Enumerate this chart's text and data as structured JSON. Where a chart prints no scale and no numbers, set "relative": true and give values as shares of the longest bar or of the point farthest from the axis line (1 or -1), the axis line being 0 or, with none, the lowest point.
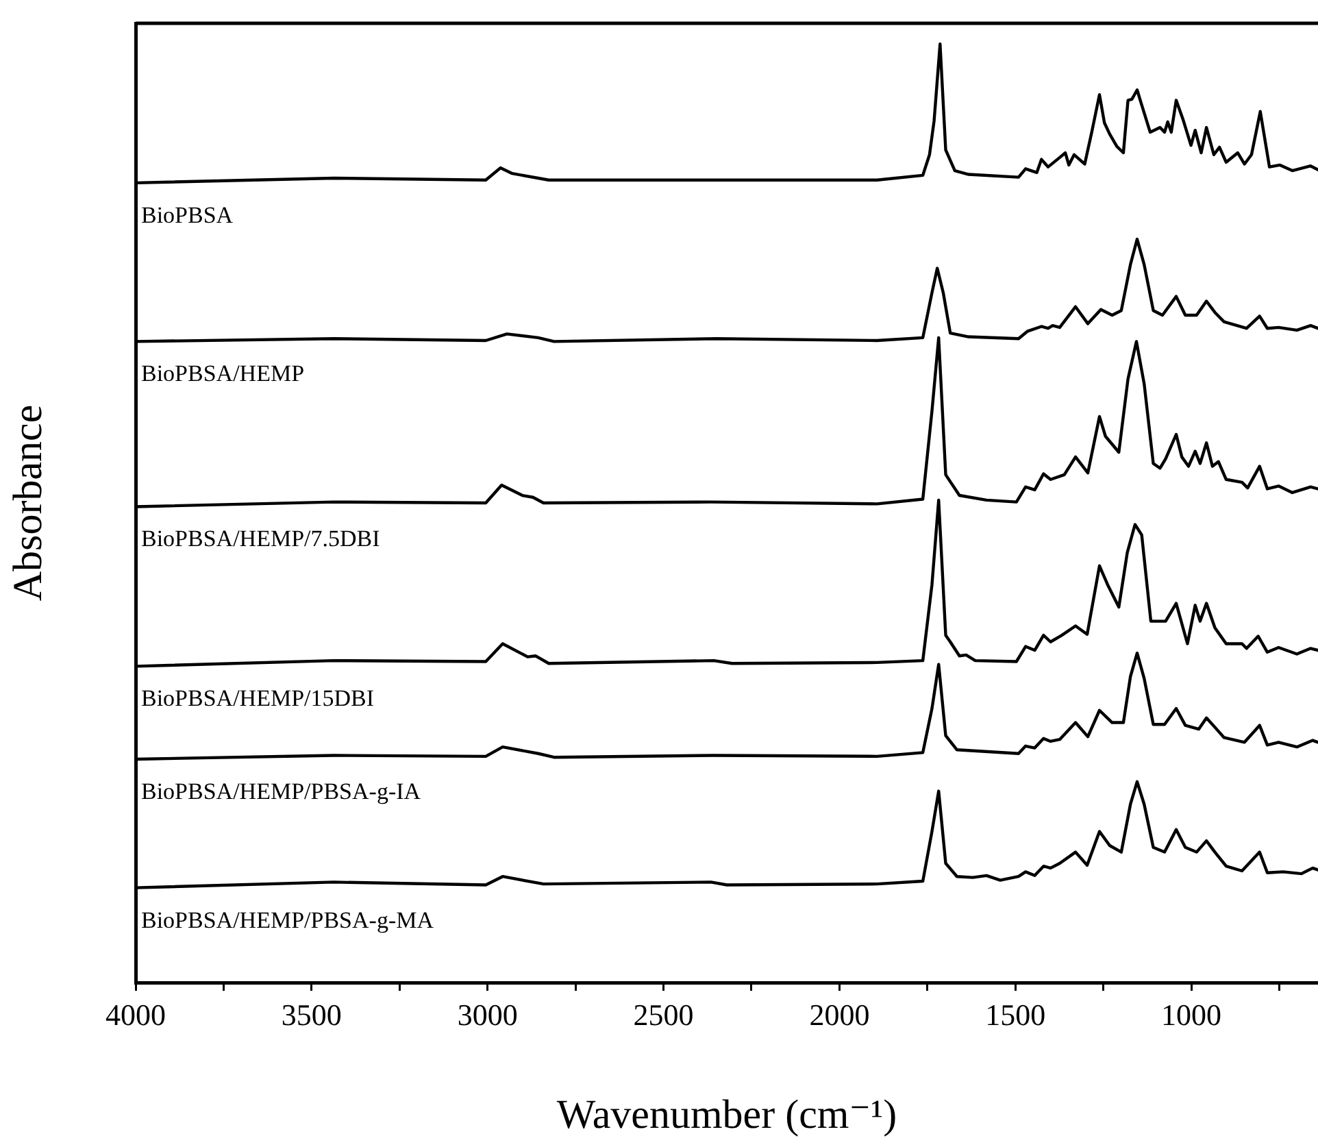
{
  "chart_data": {
    "type": "line",
    "relative": true,
    "xlabel": "Wavenumber (cm⁻¹)",
    "ylabel": "Absorbance",
    "xlim": [
      4000,
      640
    ],
    "xticks": [
      4000,
      {
        "value": 3750,
        "label": null
      },
      3500,
      {
        "value": 3250,
        "label": null
      },
      3000,
      {
        "value": 2750,
        "label": null
      },
      2500,
      {
        "value": 2250,
        "label": null
      },
      2000,
      {
        "value": 1750,
        "label": null
      },
      1500,
      {
        "value": 1250,
        "label": null
      },
      1000,
      {
        "value": 750,
        "label": null
      }
    ],
    "grid": false,
    "legend": false,
    "marker": "none",
    "line_style": "solid",
    "series": [
      {
        "name": "BioPBSA",
        "color": "#000000",
        "x": [
          4000,
          3437,
          3005,
          2963,
          2930,
          2856,
          2826,
          1893,
          1763,
          1744,
          1731,
          1714,
          1698,
          1672,
          1633,
          1491,
          1471,
          1439,
          1426,
          1407,
          1374,
          1358,
          1348,
          1333,
          1303,
          1283,
          1261,
          1247,
          1232,
          1212,
          1193,
          1180,
          1169,
          1154,
          1141,
          1117,
          1089,
          1076,
          1067,
          1057,
          1043,
          1024,
          1001,
          989,
          972,
          957,
          936,
          920,
          901,
          868,
          849,
          829,
          804,
          778,
          749,
          713,
          661,
          640
        ],
        "values": [
          0.852,
          0.857,
          0.855,
          0.868,
          0.862,
          0.857,
          0.855,
          0.855,
          0.86,
          0.882,
          0.918,
          1.0,
          0.887,
          0.865,
          0.861,
          0.858,
          0.867,
          0.863,
          0.877,
          0.869,
          0.879,
          0.884,
          0.871,
          0.882,
          0.872,
          0.906,
          0.946,
          0.916,
          0.904,
          0.891,
          0.884,
          0.94,
          0.941,
          0.951,
          0.935,
          0.906,
          0.911,
          0.906,
          0.917,
          0.906,
          0.94,
          0.92,
          0.892,
          0.908,
          0.884,
          0.911,
          0.882,
          0.89,
          0.874,
          0.884,
          0.872,
          0.882,
          0.928,
          0.869,
          0.871,
          0.865,
          0.87,
          0.866
        ]
      },
      {
        "name": "BioPBSA/HEMP",
        "color": "#000000",
        "x": [
          4000,
          3437,
          3005,
          2945,
          2856,
          2811,
          2350,
          1893,
          1763,
          1737,
          1722,
          1705,
          1685,
          1633,
          1491,
          1465,
          1426,
          1407,
          1394,
          1374,
          1329,
          1294,
          1257,
          1225,
          1199,
          1173,
          1154,
          1134,
          1108,
          1082,
          1043,
          1017,
          985,
          957,
          933,
          907,
          843,
          806,
          784,
          752,
          700,
          661,
          640
        ],
        "values": [
          0.683,
          0.686,
          0.684,
          0.691,
          0.687,
          0.683,
          0.686,
          0.684,
          0.687,
          0.735,
          0.761,
          0.735,
          0.692,
          0.688,
          0.686,
          0.694,
          0.699,
          0.697,
          0.7,
          0.698,
          0.72,
          0.702,
          0.717,
          0.711,
          0.716,
          0.765,
          0.792,
          0.765,
          0.716,
          0.711,
          0.731,
          0.711,
          0.711,
          0.726,
          0.714,
          0.704,
          0.697,
          0.71,
          0.697,
          0.698,
          0.695,
          0.7,
          0.697
        ]
      },
      {
        "name": "BioPBSA/HEMP/7.5DBI",
        "color": "#000000",
        "x": [
          4000,
          3437,
          3005,
          2960,
          2901,
          2871,
          2841,
          2365,
          1893,
          1763,
          1737,
          1718,
          1698,
          1659,
          1582,
          1497,
          1471,
          1445,
          1420,
          1400,
          1361,
          1329,
          1294,
          1261,
          1244,
          1206,
          1180,
          1156,
          1134,
          1108,
          1089,
          1073,
          1043,
          1027,
          1008,
          989,
          975,
          957,
          940,
          923,
          901,
          856,
          840,
          806,
          784,
          752,
          713,
          661,
          640
        ],
        "values": [
          0.507,
          0.512,
          0.511,
          0.53,
          0.519,
          0.517,
          0.511,
          0.512,
          0.51,
          0.515,
          0.609,
          0.687,
          0.541,
          0.519,
          0.514,
          0.512,
          0.528,
          0.525,
          0.542,
          0.536,
          0.541,
          0.56,
          0.543,
          0.603,
          0.582,
          0.565,
          0.643,
          0.683,
          0.638,
          0.553,
          0.548,
          0.558,
          0.584,
          0.56,
          0.55,
          0.566,
          0.553,
          0.575,
          0.55,
          0.555,
          0.536,
          0.533,
          0.527,
          0.55,
          0.526,
          0.529,
          0.522,
          0.528,
          0.526
        ]
      },
      {
        "name": "BioPBSA/HEMP/15DBI",
        "color": "#000000",
        "x": [
          4000,
          3437,
          3005,
          2957,
          2886,
          2863,
          2826,
          2357,
          2305,
          1893,
          1763,
          1737,
          1718,
          1698,
          1685,
          1659,
          1640,
          1614,
          1497,
          1471,
          1445,
          1420,
          1400,
          1368,
          1329,
          1296,
          1261,
          1238,
          1206,
          1182,
          1160,
          1141,
          1115,
          1073,
          1043,
          1011,
          989,
          975,
          957,
          933,
          901,
          856,
          843,
          810,
          784,
          752,
          700,
          661,
          640
        ],
        "values": [
          0.337,
          0.343,
          0.342,
          0.361,
          0.347,
          0.348,
          0.34,
          0.343,
          0.34,
          0.341,
          0.343,
          0.424,
          0.514,
          0.37,
          0.363,
          0.348,
          0.349,
          0.343,
          0.342,
          0.358,
          0.354,
          0.37,
          0.363,
          0.37,
          0.38,
          0.371,
          0.444,
          0.424,
          0.4,
          0.458,
          0.488,
          0.477,
          0.385,
          0.385,
          0.404,
          0.361,
          0.402,
          0.385,
          0.404,
          0.378,
          0.361,
          0.361,
          0.356,
          0.369,
          0.352,
          0.357,
          0.35,
          0.356,
          0.354
        ]
      },
      {
        "name": "BioPBSA/HEMP/PBSA-g-IA",
        "color": "#000000",
        "x": [
          4000,
          3437,
          3005,
          2957,
          2856,
          2811,
          2357,
          1893,
          1763,
          1737,
          1718,
          1698,
          1666,
          1491,
          1471,
          1445,
          1420,
          1400,
          1374,
          1329,
          1294,
          1261,
          1225,
          1193,
          1173,
          1154,
          1134,
          1108,
          1076,
          1043,
          1017,
          979,
          957,
          933,
          907,
          849,
          806,
          784,
          752,
          700,
          655,
          640
        ],
        "values": [
          0.238,
          0.242,
          0.241,
          0.251,
          0.244,
          0.24,
          0.242,
          0.241,
          0.245,
          0.292,
          0.339,
          0.263,
          0.248,
          0.244,
          0.252,
          0.25,
          0.26,
          0.257,
          0.259,
          0.277,
          0.262,
          0.29,
          0.277,
          0.277,
          0.326,
          0.351,
          0.324,
          0.275,
          0.275,
          0.292,
          0.274,
          0.27,
          0.282,
          0.272,
          0.261,
          0.256,
          0.274,
          0.253,
          0.256,
          0.251,
          0.258,
          0.256
        ]
      },
      {
        "name": "BioPBSA/HEMP/PBSA-g-MA",
        "color": "#000000",
        "x": [
          4000,
          3437,
          3005,
          2957,
          2841,
          2365,
          2320,
          1893,
          1763,
          1737,
          1718,
          1698,
          1666,
          1621,
          1582,
          1543,
          1491,
          1471,
          1445,
          1420,
          1400,
          1374,
          1329,
          1296,
          1261,
          1232,
          1199,
          1173,
          1154,
          1134,
          1108,
          1076,
          1043,
          1017,
          985,
          957,
          933,
          901,
          856,
          806,
          784,
          739,
          687,
          655,
          640
        ],
        "values": [
          0.101,
          0.107,
          0.104,
          0.113,
          0.105,
          0.107,
          0.104,
          0.105,
          0.108,
          0.161,
          0.204,
          0.127,
          0.113,
          0.112,
          0.114,
          0.109,
          0.113,
          0.118,
          0.114,
          0.124,
          0.122,
          0.127,
          0.139,
          0.125,
          0.161,
          0.146,
          0.139,
          0.19,
          0.214,
          0.19,
          0.144,
          0.139,
          0.163,
          0.144,
          0.139,
          0.151,
          0.139,
          0.124,
          0.119,
          0.139,
          0.117,
          0.118,
          0.116,
          0.122,
          0.12
        ]
      }
    ]
  }
}
